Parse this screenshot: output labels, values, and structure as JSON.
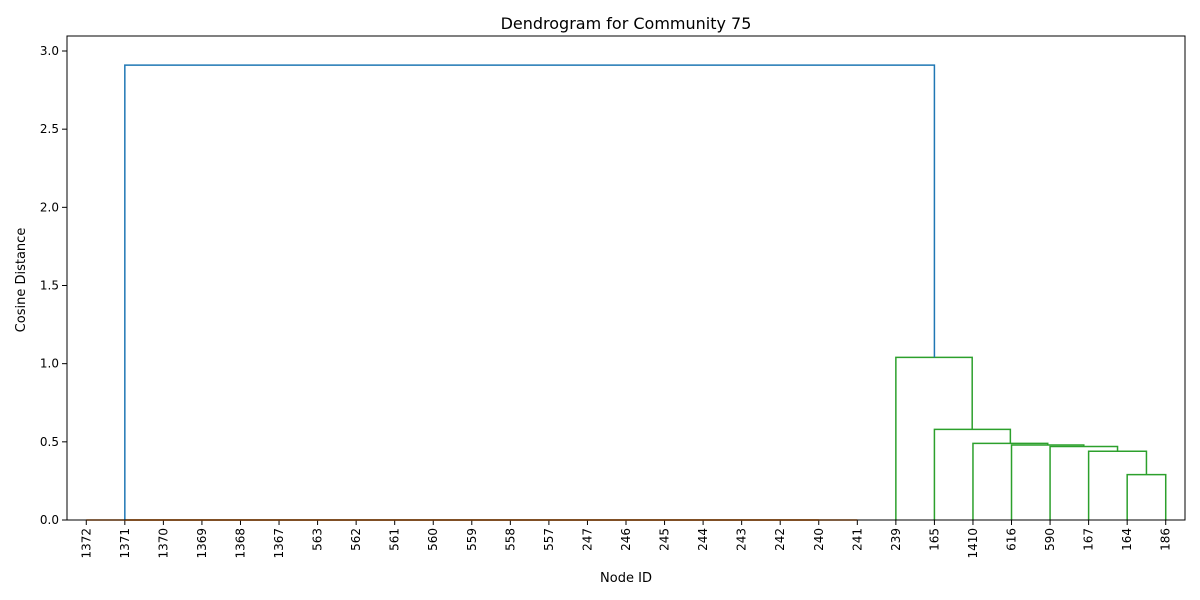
{
  "chart_data": {
    "type": "dendrogram",
    "title": "Dendrogram for Community 75",
    "xlabel": "Node ID",
    "ylabel": "Cosine Distance",
    "ylim": [
      0,
      3.0
    ],
    "yticks": [
      "0.0",
      "0.5",
      "1.0",
      "1.5",
      "2.0",
      "2.5",
      "3.0"
    ],
    "leaves": [
      "1372",
      "1371",
      "1370",
      "1369",
      "1368",
      "1367",
      "563",
      "562",
      "561",
      "560",
      "559",
      "558",
      "557",
      "247",
      "246",
      "245",
      "244",
      "243",
      "242",
      "240",
      "241",
      "239",
      "165",
      "1410",
      "616",
      "590",
      "167",
      "164",
      "186"
    ],
    "colors": {
      "cluster1": "#ff7f0e",
      "cluster2": "#2ca02c",
      "root": "#1f77b4"
    },
    "links": [
      {
        "left": 1,
        "right": 19,
        "height": 0.0,
        "color": "cluster1"
      },
      {
        "left": 27,
        "right": 28,
        "height": 0.29,
        "color": "cluster2"
      },
      {
        "left": 26,
        "right": 27.5,
        "height": 0.44,
        "color": "cluster2"
      },
      {
        "left": 25,
        "right": 26.75,
        "height": 0.47,
        "color": "cluster2"
      },
      {
        "left": 24,
        "right": 25.875,
        "height": 0.48,
        "color": "cluster2"
      },
      {
        "left": 23,
        "right": 24.94,
        "height": 0.49,
        "color": "cluster2"
      },
      {
        "left": 22,
        "right": 23.97,
        "height": 0.58,
        "color": "cluster2"
      },
      {
        "left": 21,
        "right": 22.98,
        "height": 1.04,
        "color": "cluster2"
      },
      {
        "left": 1,
        "right": 22,
        "height": 2.91,
        "color": "root"
      }
    ]
  }
}
